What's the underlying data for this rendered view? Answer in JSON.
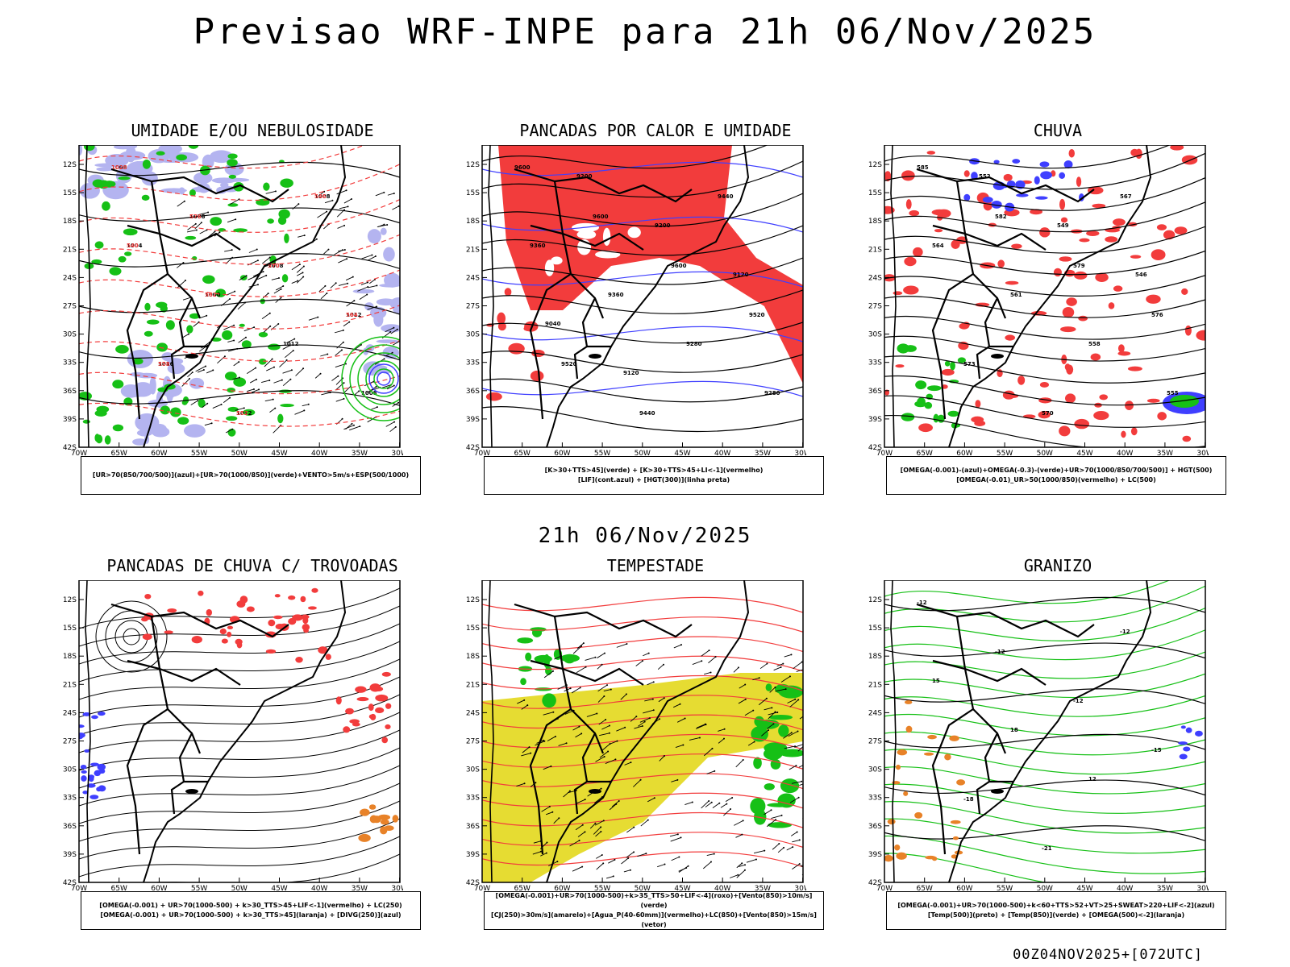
{
  "title": "Previsao WRF-INPE  para 21h 06/Nov/2025",
  "subtitle": "21h 06/Nov/2025",
  "footer": "00Z04NOV2025+[072UTC]",
  "axes": {
    "lat_labels": [
      "12S",
      "15S",
      "18S",
      "21S",
      "24S",
      "27S",
      "30S",
      "33S",
      "36S",
      "39S",
      "42S"
    ],
    "lon_labels": [
      "70W",
      "65W",
      "60W",
      "55W",
      "50W",
      "45W",
      "40W",
      "35W",
      "30W"
    ]
  },
  "panels": [
    {
      "id": "umidade",
      "title": "UMIDADE E/OU NEBULOSIDADE",
      "caption_lines": [
        "[UR>70(850/700/500)](azul)+[UR>70(1000/850)](verde)+VENTO>5m/s+ESP(500/1000)"
      ],
      "contour_labels": [
        "1008",
        "1008",
        "1008",
        "1012",
        "1016",
        "1012",
        "1008",
        "1004",
        "1000",
        "1012",
        "1008",
        "1020",
        "576",
        "570",
        "564",
        "558",
        "552",
        "546",
        "540",
        "582"
      ]
    },
    {
      "id": "pancadas-calor",
      "title": "PANCADAS POR CALOR E UMIDADE",
      "caption_lines": [
        "[K>30+TTS>45](verde) + [K>30+TTS>45+LI<-1](vermelho)",
        "[LIF](cont.azul) + [HGT(300)](linha preta)"
      ],
      "contour_labels": [
        "9600",
        "9600",
        "9600",
        "9520",
        "9520",
        "9440",
        "9440",
        "9360",
        "9360",
        "9280",
        "9280",
        "9200",
        "9200",
        "9120",
        "9040",
        "9120"
      ]
    },
    {
      "id": "chuva",
      "title": "CHUVA",
      "caption_lines": [
        "[OMEGA(-0.001)-(azul)+OMEGA(-0.3)-(verde)+UR>70(1000/850/700/500)] + HGT(500)",
        "[OMEGA(-0.01)_UR>50(1000/850)(vermelho) + LC(500)"
      ],
      "contour_labels": [
        "585",
        "582",
        "579",
        "576",
        "573",
        "570",
        "567",
        "564",
        "561",
        "558",
        "555",
        "552",
        "549",
        "546"
      ]
    },
    {
      "id": "trovoadas",
      "title": "PANCADAS DE CHUVA C/ TROVOADAS",
      "caption_lines": [
        "[OMEGA(-0.001) + UR>70(1000-500) + k>30_TTS>45+LIF<-1](vermelho) + LC(250)",
        "[OMEGA(-0.001) + UR>70(1000-500) + k>30_TTS>45](laranja) + [DIVG(250)](azul)"
      ],
      "contour_labels": []
    },
    {
      "id": "tempestade",
      "title": "TEMPESTADE",
      "caption_lines": [
        "[OMEGA(-0.001)+UR>70(1000-500)+k>35_TTS>50+LIF<-4](roxo)+[Vento(850)>10m/s](verde)",
        "[CJ(250)>30m/s](amarelo)+[Agua_P(40-60mm)](vermelho)+LC(850)+[Vento(850)>15m/s](vetor)"
      ],
      "contour_labels": []
    },
    {
      "id": "granizo",
      "title": "GRANIZO",
      "caption_lines": [
        "[OMEGA(-0.001)+UR>70(1000-500)+k<60+TTS>52+VT>25+SWEAT>220+LIF<-2](azul)",
        "[Temp(500)](preto) + [Temp(850)](verde) + [OMEGA(500)<-2](laranja)"
      ],
      "contour_labels": [
        "-12",
        "-12",
        "-12",
        "-15",
        "-18",
        "-21",
        "-12",
        "15",
        "18",
        "12"
      ]
    }
  ],
  "colors": {
    "azul": "#3f3fff",
    "verde": "#16c016",
    "vermelho": "#f23c3c",
    "laranja": "#e88228",
    "amarelo": "#e6dc32",
    "lilas": "#b4b4f0",
    "roxo": "#a020f0",
    "preto": "#000000"
  }
}
